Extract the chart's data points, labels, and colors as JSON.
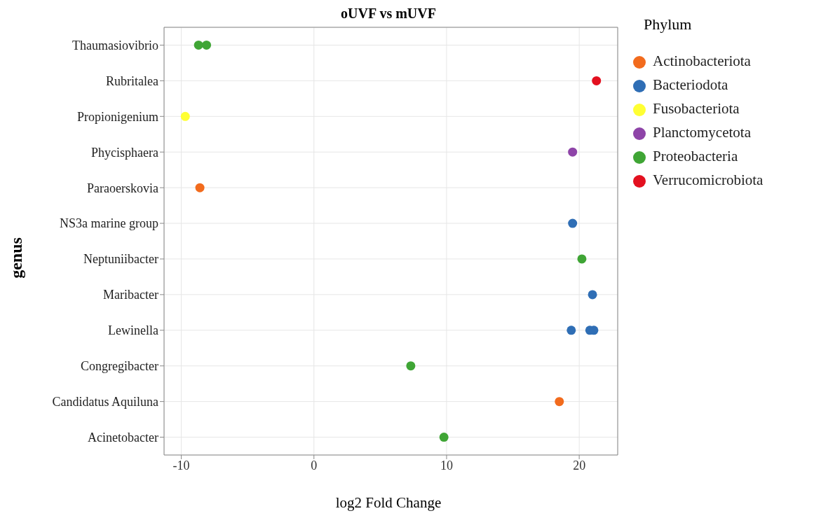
{
  "chart_data": {
    "type": "scatter",
    "title": "oUVF vs mUVF",
    "xlabel": "log2 Fold Change",
    "ylabel": "genus",
    "legend_title": "Phylum",
    "orientation": "horizontal",
    "categories": [
      "Thaumasiovibrio",
      "Rubritalea",
      "Propionigenium",
      "Phycisphaera",
      "Paraoerskovia",
      "NS3a marine group",
      "Neptuniibacter",
      "Maribacter",
      "Lewinella",
      "Congregibacter",
      "Candidatus Aquiluna",
      "Acinetobacter"
    ],
    "series": [
      {
        "name": "Actinobacteriota",
        "color": "#f26b1d",
        "x": [
          "Paraoerskovia",
          "Candidatus Aquiluna"
        ],
        "values": [
          -8.6,
          18.5
        ]
      },
      {
        "name": "Bacteriodota",
        "color": "#2f6eb5",
        "x": [
          "NS3a marine group",
          "Maribacter",
          "Lewinella",
          "Lewinella",
          "Lewinella"
        ],
        "values": [
          19.5,
          21.0,
          19.4,
          20.8,
          21.1
        ]
      },
      {
        "name": "Fusobacteriota",
        "color": "#ffff33",
        "x": [
          "Propionigenium"
        ],
        "values": [
          -9.7
        ]
      },
      {
        "name": "Planctomycetota",
        "color": "#8e44a8",
        "x": [
          "Phycisphaera"
        ],
        "values": [
          19.5
        ]
      },
      {
        "name": "Proteobacteria",
        "color": "#3fa535",
        "x": [
          "Thaumasiovibrio",
          "Thaumasiovibrio",
          "Neptuniibacter",
          "Congregibacter",
          "Acinetobacter"
        ],
        "values": [
          -8.7,
          -8.1,
          20.2,
          7.3,
          9.8
        ]
      },
      {
        "name": "Verrucomicrobiota",
        "color": "#e3101f",
        "x": [
          "Rubritalea"
        ],
        "values": [
          21.3
        ]
      }
    ],
    "xlim": [
      -11.3,
      22.9
    ],
    "xticks": [
      -10,
      0,
      10,
      20
    ],
    "grid": true,
    "legend": "right",
    "marker": "circle"
  }
}
